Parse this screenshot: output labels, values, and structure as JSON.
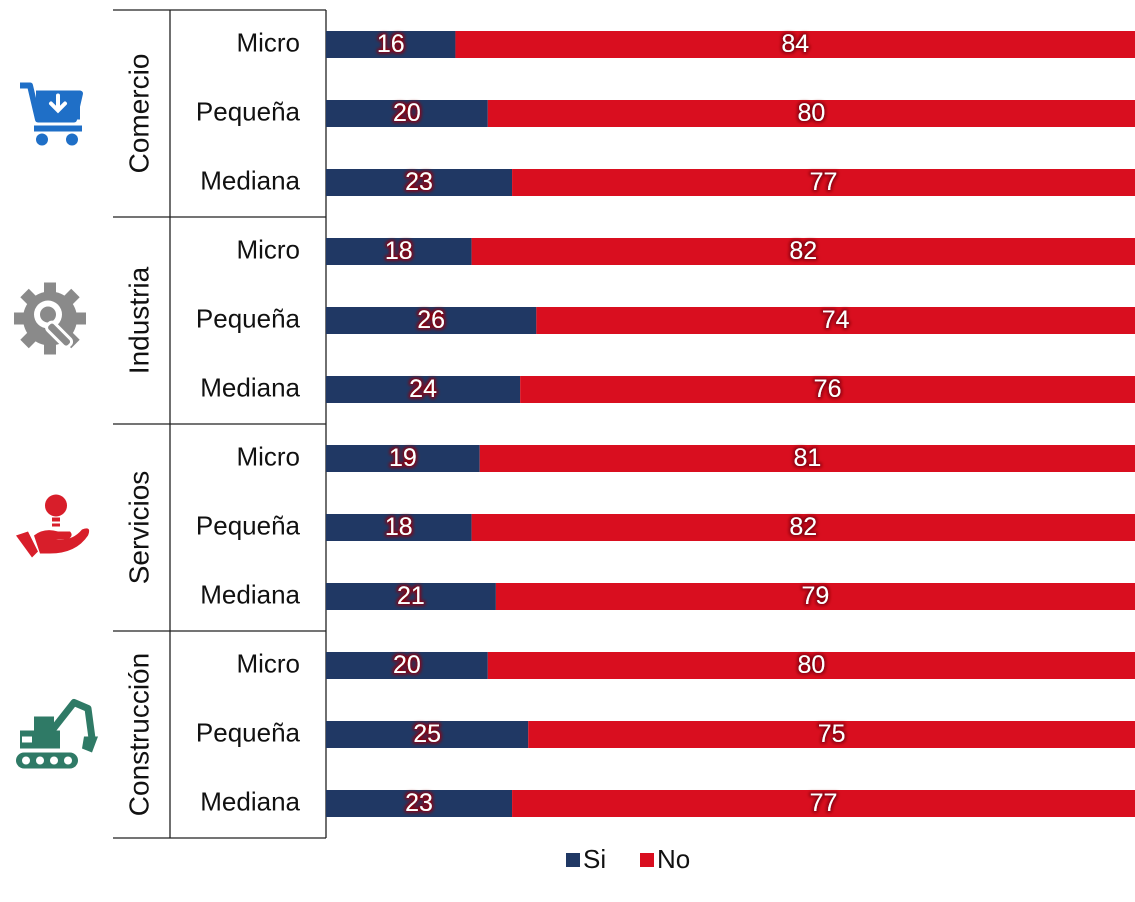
{
  "chart_data": {
    "type": "bar",
    "orientation": "horizontal",
    "stacked": true,
    "percent": true,
    "xlim": [
      0,
      100
    ],
    "grid": false,
    "legend_position": "bottom",
    "groups": [
      {
        "name": "Comercio",
        "icon": "shopping-cart-icon",
        "icon_color": "#1f6fc7",
        "categories": [
          "Micro",
          "Pequeña",
          "Mediana"
        ],
        "si": [
          16,
          20,
          23
        ],
        "no": [
          84,
          80,
          77
        ]
      },
      {
        "name": "Industria",
        "icon": "gear-wrench-icon",
        "icon_color": "#8a8a8a",
        "categories": [
          "Micro",
          "Pequeña",
          "Mediana"
        ],
        "si": [
          18,
          26,
          24
        ],
        "no": [
          82,
          74,
          76
        ]
      },
      {
        "name": "Servicios",
        "icon": "hand-lightbulb-icon",
        "icon_color": "#d81e2a",
        "categories": [
          "Micro",
          "Pequeña",
          "Mediana"
        ],
        "si": [
          19,
          18,
          21
        ],
        "no": [
          81,
          82,
          79
        ]
      },
      {
        "name": "Construcción",
        "icon": "excavator-icon",
        "icon_color": "#2f7a66",
        "categories": [
          "Micro",
          "Pequeña",
          "Mediana"
        ],
        "si": [
          20,
          25,
          23
        ],
        "no": [
          80,
          75,
          77
        ]
      }
    ],
    "series": [
      {
        "name": "Si",
        "color": "#203864"
      },
      {
        "name": "No",
        "color": "#d90e1f"
      }
    ]
  }
}
